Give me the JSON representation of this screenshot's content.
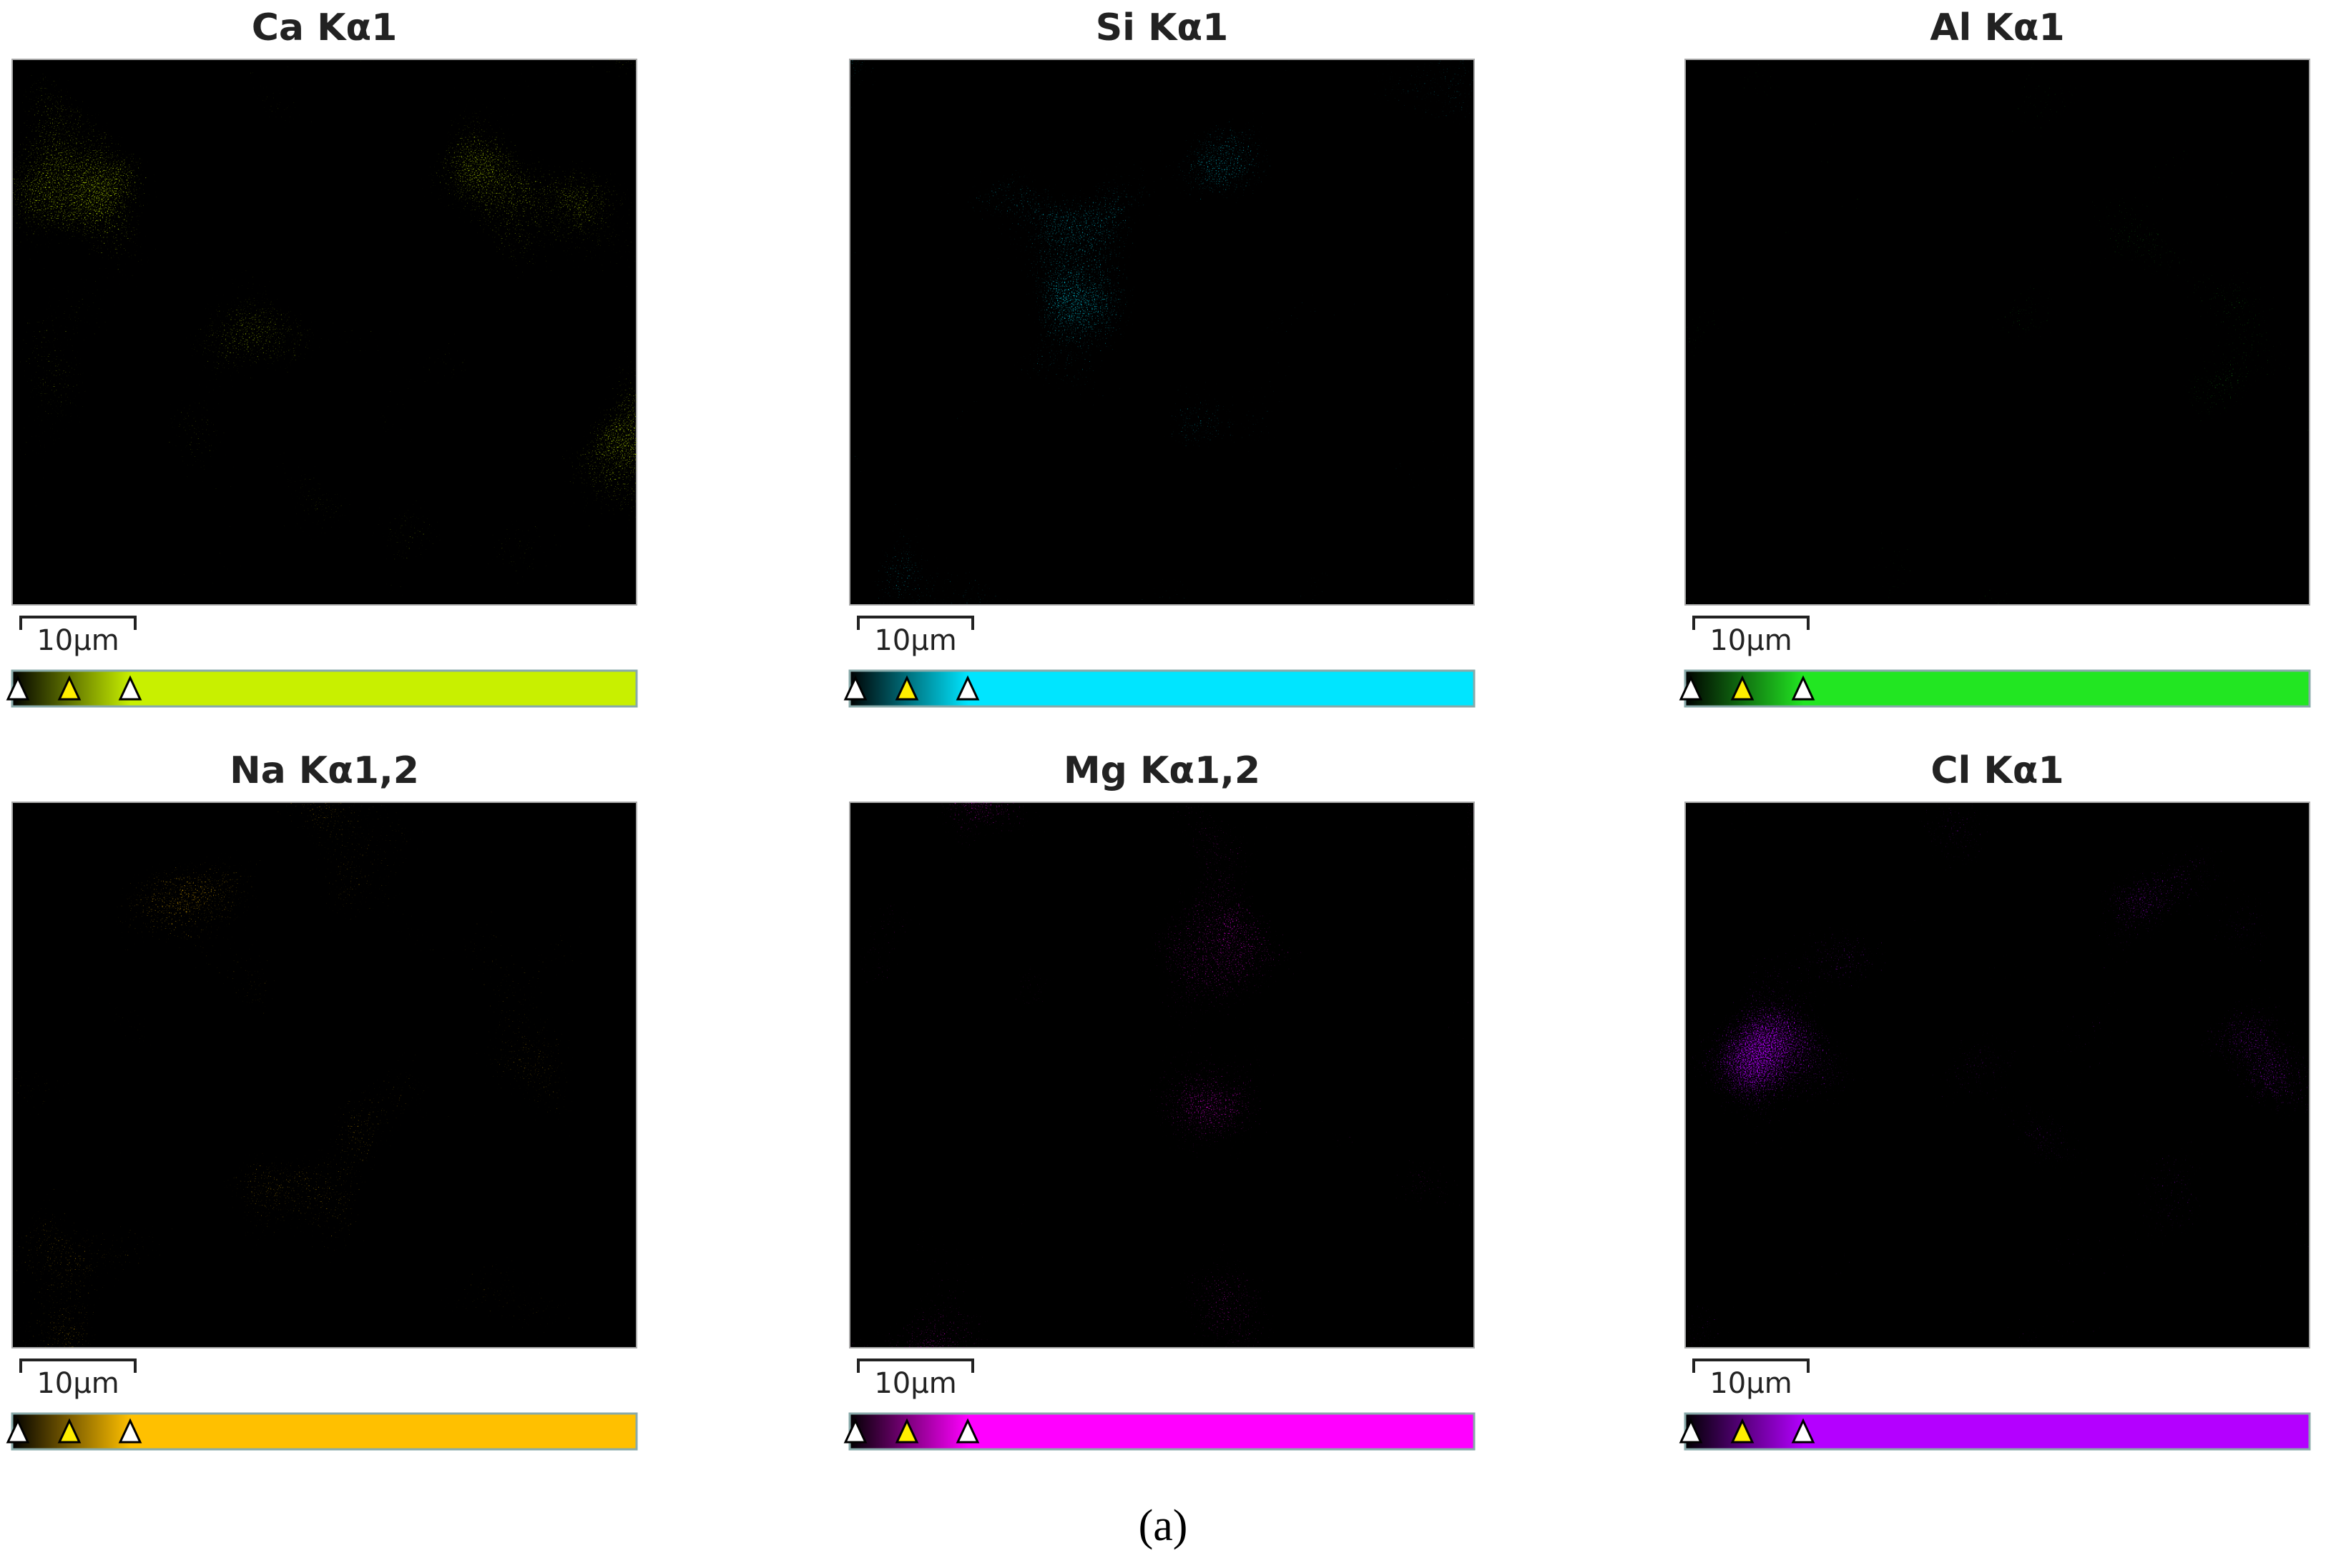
{
  "panels": [
    {
      "title": "Ca Kα1",
      "scale_label": "10μm",
      "color": "#c8f000"
    },
    {
      "title": "Si Kα1",
      "scale_label": "10μm",
      "color": "#00e5ff"
    },
    {
      "title": "Al Kα1",
      "scale_label": "10μm",
      "color": "#22e622"
    },
    {
      "title": "Na Kα1,2",
      "scale_label": "10μm",
      "color": "#ffc000"
    },
    {
      "title": "Mg Kα1,2",
      "scale_label": "10μm",
      "color": "#ff00ff"
    },
    {
      "title": "Cl Kα1",
      "scale_label": "10μm",
      "color": "#b400ff"
    }
  ],
  "caption": "(a)"
}
